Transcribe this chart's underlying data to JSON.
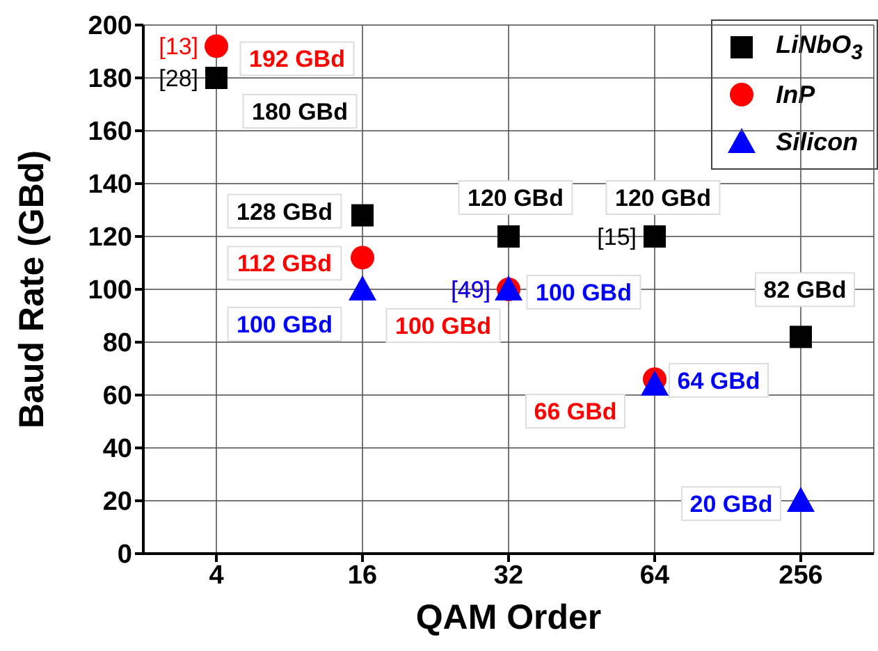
{
  "chart_data": {
    "type": "scatter",
    "xlabel": "QAM Order",
    "ylabel": "Baud Rate (GBd)",
    "categories": [
      "4",
      "16",
      "32",
      "64",
      "256"
    ],
    "ylim": [
      0,
      200
    ],
    "yticks": [
      0,
      20,
      40,
      60,
      80,
      100,
      120,
      140,
      160,
      180,
      200
    ],
    "grid": true,
    "legend": "top right",
    "series": [
      {
        "name": "LiNbO$_{3}$",
        "color": "#000000",
        "marker": "square",
        "values": [
          180,
          128,
          120,
          120,
          82
        ],
        "value_labels": [
          "180 GBd",
          "128 GBd",
          "120 GBd",
          "120 GBd",
          "82 GBd"
        ]
      },
      {
        "name": "InP",
        "color": "#ff0000",
        "marker": "circle",
        "values": [
          192,
          112,
          100,
          66,
          null
        ],
        "value_labels": [
          "192 GBd",
          "112 GBd",
          "100 GBd",
          "66 GBd",
          null
        ]
      },
      {
        "name": "Silicon",
        "color": "#0000ff",
        "marker": "triangle",
        "values": [
          null,
          100,
          100,
          64,
          20
        ],
        "value_labels": [
          null,
          "100 GBd",
          "100 GBd",
          "64 GBd",
          "20 GBd"
        ]
      }
    ],
    "annotations": [
      {
        "text": "[13]",
        "x": "4",
        "y": 192
      },
      {
        "text": "[28]",
        "x": "4",
        "y": 180
      },
      {
        "text": "[49]",
        "x": "32",
        "y": 100
      },
      {
        "text": "[15]",
        "x": "64",
        "y": 120
      }
    ]
  }
}
